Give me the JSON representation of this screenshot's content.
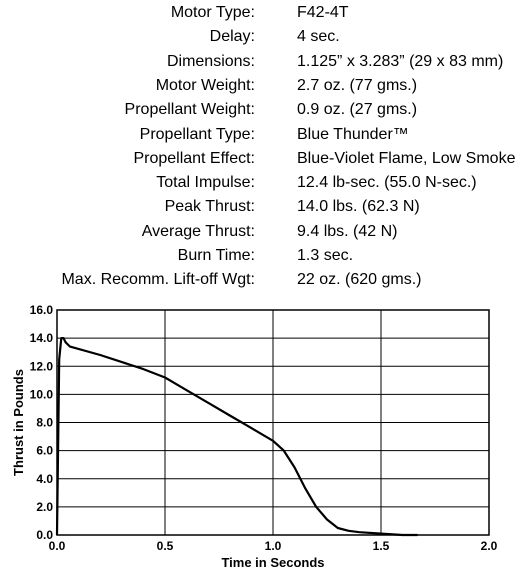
{
  "specs": [
    {
      "label": "Motor Type:",
      "value": "F42-4T"
    },
    {
      "label": "Delay:",
      "value": "4 sec."
    },
    {
      "label": "Dimensions:",
      "value": "1.125” x 3.283” (29 x 83 mm)"
    },
    {
      "label": "Motor Weight:",
      "value": "2.7 oz. (77 gms.)"
    },
    {
      "label": "Propellant Weight:",
      "value": "0.9 oz. (27 gms.)"
    },
    {
      "label": "Propellant Type:",
      "value": "Blue Thunder™"
    },
    {
      "label": "Propellant Effect:",
      "value": "Blue-Violet Flame, Low Smoke"
    },
    {
      "label": "Total Impulse:",
      "value": "12.4 lb-sec. (55.0 N-sec.)"
    },
    {
      "label": "Peak Thrust:",
      "value": "14.0 lbs. (62.3 N)"
    },
    {
      "label": "Average Thrust:",
      "value": "9.4 lbs. (42 N)"
    },
    {
      "label": "Burn Time:",
      "value": "1.3 sec."
    },
    {
      "label": "Max. Recomm. Lift-off Wgt:",
      "value": "22 oz. (620 gms.)"
    }
  ],
  "chart_data": {
    "type": "line",
    "xlabel": "Time in Seconds",
    "ylabel": "Thrust in Pounds",
    "xlim": [
      0,
      2.0
    ],
    "ylim": [
      0,
      16.0
    ],
    "x_ticks": [
      "0.0",
      "0.5",
      "1.0",
      "1.5",
      "2.0"
    ],
    "y_ticks": [
      "0.0",
      "2.0",
      "4.0",
      "6.0",
      "8.0",
      "10.0",
      "12.0",
      "14.0",
      "16.0"
    ],
    "grid": true,
    "series": [
      {
        "x": [
          0.0,
          0.01,
          0.02,
          0.03,
          0.04,
          0.06,
          0.2,
          0.4,
          0.5,
          0.6,
          0.7,
          0.8,
          0.9,
          1.0,
          1.05,
          1.1,
          1.15,
          1.2,
          1.25,
          1.3,
          1.35,
          1.4,
          1.5,
          1.6,
          1.67
        ],
        "y": [
          0.0,
          12.5,
          14.0,
          14.0,
          13.7,
          13.4,
          12.8,
          11.8,
          11.2,
          10.3,
          9.4,
          8.5,
          7.6,
          6.7,
          6.0,
          4.8,
          3.3,
          2.0,
          1.1,
          0.5,
          0.3,
          0.2,
          0.1,
          0.0,
          0.0
        ]
      }
    ]
  }
}
